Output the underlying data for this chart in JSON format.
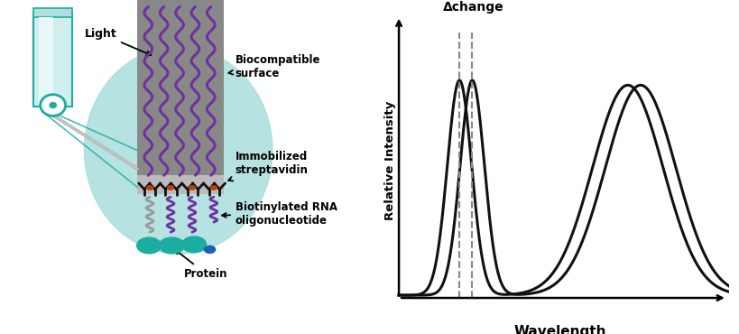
{
  "bg_color": "#ffffff",
  "curve_color": "#111111",
  "dashed_color": "#888888",
  "arrow_color": "#000000",
  "teal_color": "#1aada0",
  "teal_light": "#aadddd",
  "purple_color": "#7030a0",
  "gray_surface": "#888888",
  "gray_light": "#bbbbbb",
  "orange_color": "#b84000",
  "xlabel": "Wavelength",
  "ylabel": "Relative Intensity",
  "delta_label": "Δchange",
  "label_light": "Light",
  "label_biocompat": "Biocompatible\nsurface",
  "label_immob": "Immobilized\nstreptavidin",
  "label_biotin": "Biotinylated RNA\noligonucleotide",
  "label_protein": "Protein"
}
